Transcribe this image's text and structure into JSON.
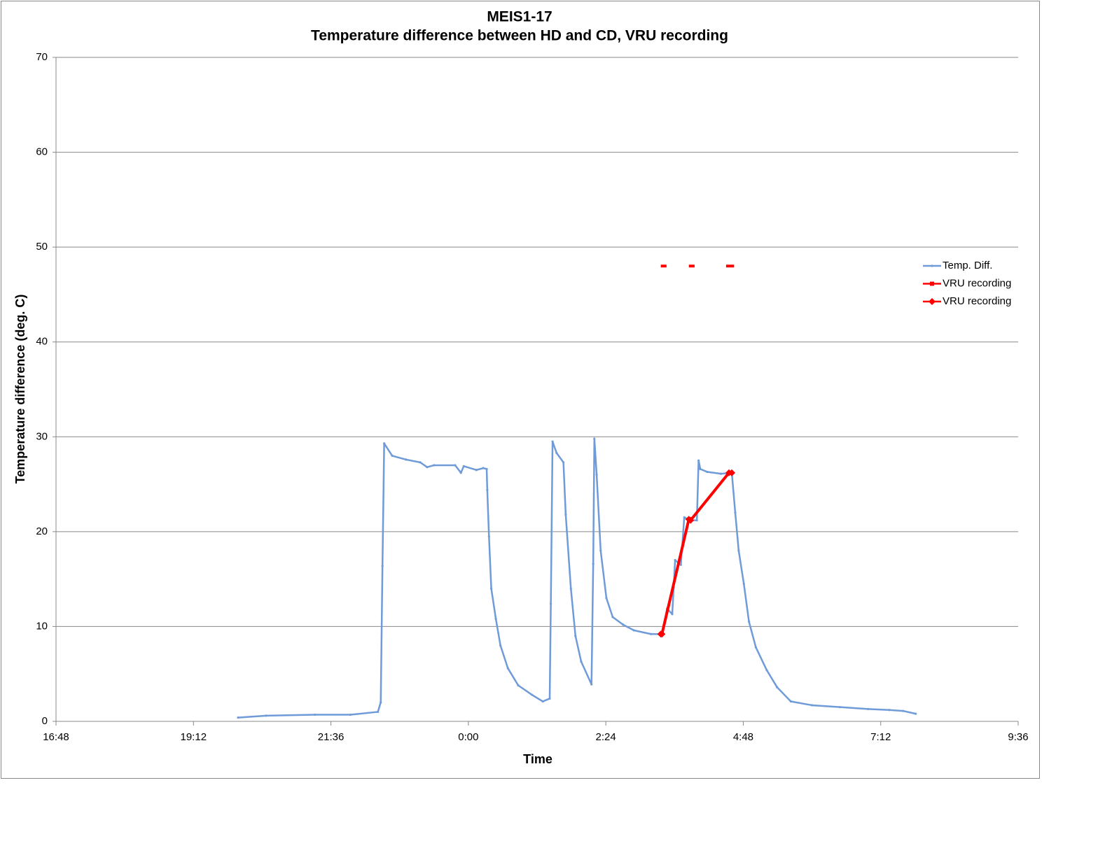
{
  "chart_data": {
    "type": "line",
    "title": "MEIS1-17",
    "subtitle": "Temperature difference between HD and CD, VRU recording",
    "x_label": "Time",
    "y_label": "Temperature difference (deg. C)",
    "xlim": [
      16.8,
      33.6
    ],
    "xticks": [
      {
        "value": 16.8,
        "label": "16:48"
      },
      {
        "value": 19.2,
        "label": "19:12"
      },
      {
        "value": 21.6,
        "label": "21:36"
      },
      {
        "value": 24.0,
        "label": "0:00"
      },
      {
        "value": 26.4,
        "label": "2:24"
      },
      {
        "value": 28.8,
        "label": "4:48"
      },
      {
        "value": 31.2,
        "label": "7:12"
      },
      {
        "value": 33.6,
        "label": "9:36"
      }
    ],
    "ylim": [
      0,
      70
    ],
    "yticks": [
      0,
      10,
      20,
      30,
      40,
      50,
      60,
      70
    ],
    "grid": true,
    "legend": "right",
    "series": [
      {
        "name": "Temp. Diff.",
        "color": "#6f9bd8",
        "marker": "dot",
        "x": [
          19.98,
          20.47,
          21.32,
          21.94,
          22.42,
          22.47,
          22.5,
          22.53,
          22.67,
          22.91,
          23.16,
          23.28,
          23.4,
          23.77,
          23.87,
          23.92,
          24.14,
          24.26,
          24.32,
          24.33,
          24.36,
          24.4,
          24.48,
          24.56,
          24.69,
          24.87,
          25.11,
          25.3,
          25.42,
          25.44,
          25.47,
          25.54,
          25.66,
          25.7,
          25.79,
          25.87,
          25.97,
          26.15,
          26.18,
          26.2,
          26.24,
          26.31,
          26.41,
          26.52,
          26.7,
          26.89,
          27.19,
          27.38,
          27.47,
          27.56,
          27.61,
          27.71,
          27.77,
          27.86,
          27.99,
          28.02,
          28.05,
          28.17,
          28.41,
          28.6,
          28.66,
          28.72,
          28.81,
          28.9,
          29.02,
          29.21,
          29.39,
          29.63,
          30.0,
          30.49,
          30.98,
          31.35,
          31.59,
          31.81
        ],
        "values": [
          0.4,
          0.6,
          0.7,
          0.7,
          1.0,
          2,
          16.4,
          29.3,
          28.0,
          27.6,
          27.3,
          26.8,
          27.0,
          27.0,
          26.2,
          26.9,
          26.5,
          26.7,
          26.6,
          24.4,
          19.5,
          14,
          10.8,
          8,
          5.6,
          3.8,
          2.8,
          2.1,
          2.4,
          12.4,
          29.5,
          28.3,
          27.3,
          21.8,
          14,
          9,
          6.3,
          3.9,
          16.6,
          29.8,
          26,
          18,
          13,
          11,
          10.2,
          9.6,
          9.2,
          9.2,
          11.9,
          11.3,
          17,
          16.5,
          21.5,
          21.2,
          21.2,
          27.5,
          26.6,
          26.3,
          26.1,
          26.2,
          22,
          18,
          14.5,
          10.5,
          7.8,
          5.4,
          3.6,
          2.1,
          1.7,
          1.5,
          1.3,
          1.2,
          1.1,
          0.8
        ]
      },
      {
        "name": "VRU recording",
        "color": "#ff0000",
        "marker": "square",
        "x": [
          27.36,
          27.46,
          27.6,
          27.85,
          27.95,
          28.2,
          28.5,
          28.64
        ],
        "values": [
          48,
          48,
          null,
          48,
          48,
          null,
          48,
          48
        ]
      },
      {
        "name": "VRU recording",
        "color": "#ff0000",
        "marker": "diamond",
        "x": [
          27.36,
          27.38,
          27.85,
          27.88,
          28.55,
          28.6
        ],
        "values": [
          9.2,
          9.2,
          21.3,
          21.2,
          26.2,
          26.2
        ]
      }
    ]
  }
}
